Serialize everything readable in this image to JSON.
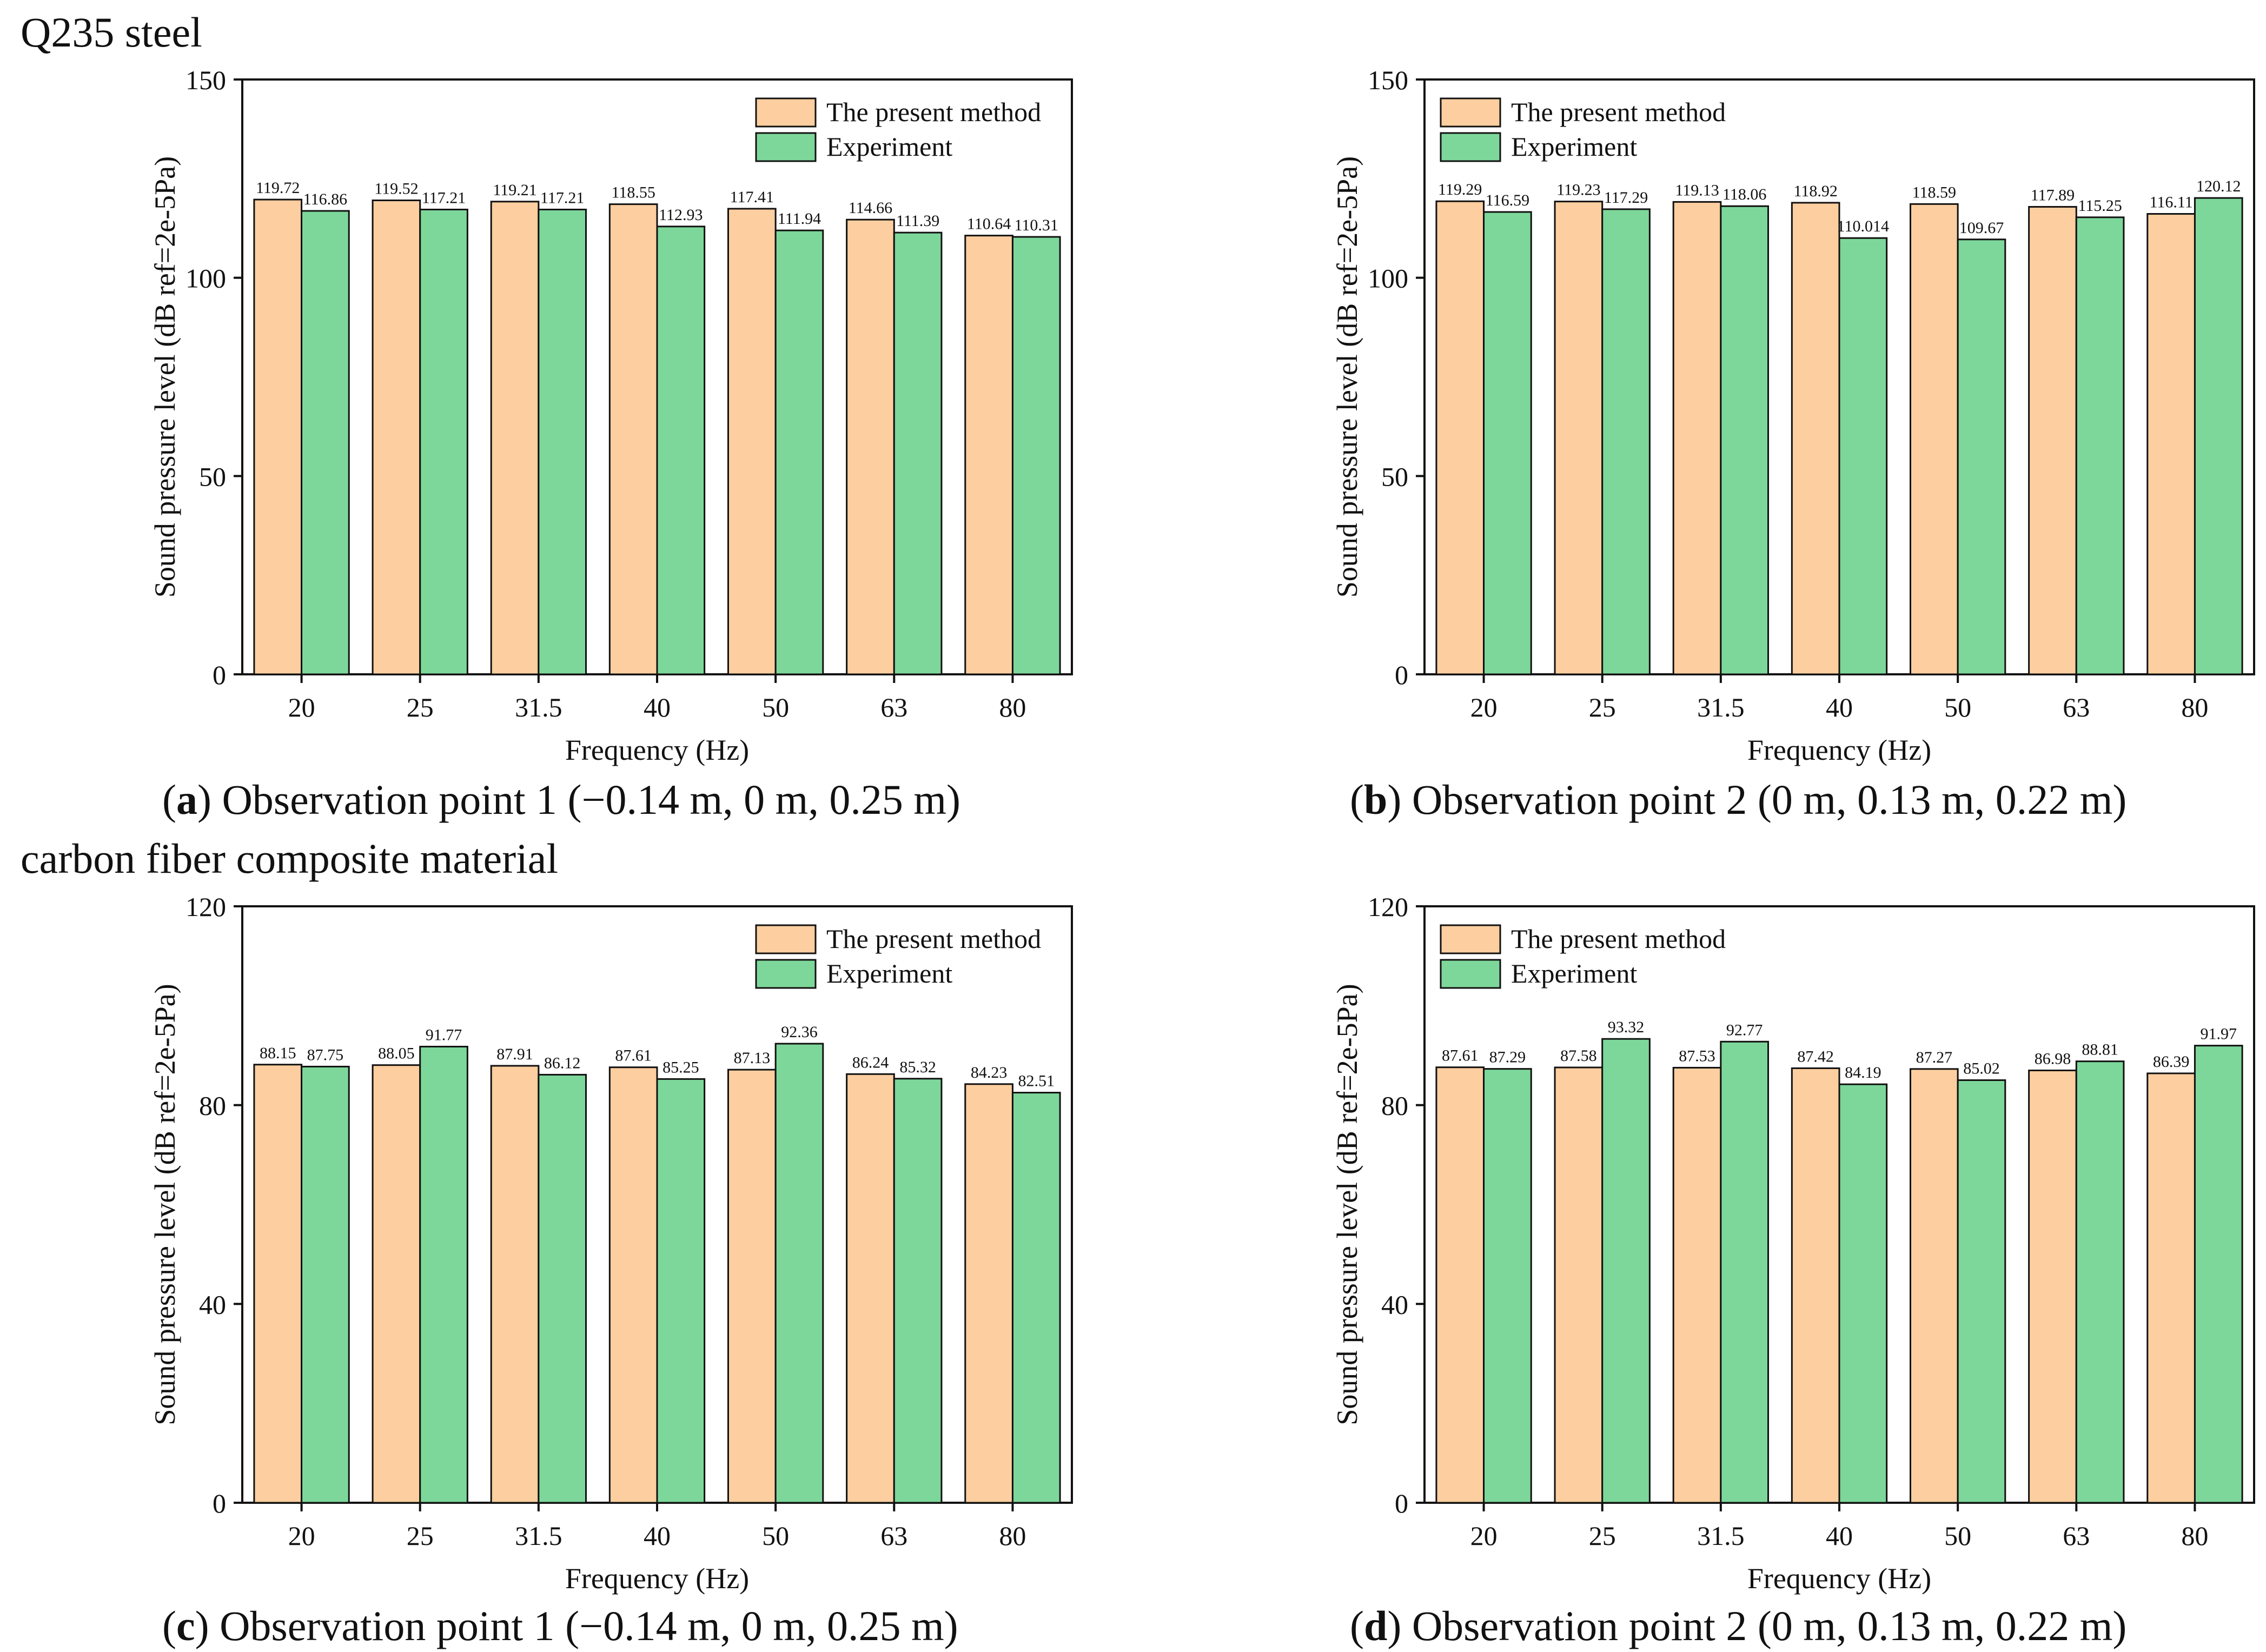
{
  "figure": {
    "section_top_title": "Q235 steel",
    "section_bottom_title": "carbon fiber composite material",
    "colors": {
      "present_method": "#FDCE9F",
      "experiment": "#7DD79A",
      "outline": "#111111"
    }
  },
  "chart_data": [
    {
      "type": "bar",
      "panel_letter": "a",
      "caption": "Observation point 1 (−0.14 m, 0 m, 0.25 m)",
      "xlabel": "Frequency (Hz)",
      "ylabel": "Sound pressure level (dB ref=2e-5Pa)",
      "ylim": [
        0,
        150
      ],
      "yticks": [
        0,
        50,
        100,
        150
      ],
      "legend_position": "top-right",
      "categories": [
        "20",
        "25",
        "31.5",
        "40",
        "50",
        "63",
        "80"
      ],
      "series": [
        {
          "name": "The present method",
          "values": [
            119.72,
            119.52,
            119.21,
            118.55,
            117.41,
            114.66,
            110.64
          ]
        },
        {
          "name": "Experiment",
          "values": [
            116.86,
            117.21,
            117.21,
            112.93,
            111.94,
            111.39,
            110.31
          ]
        }
      ]
    },
    {
      "type": "bar",
      "panel_letter": "b",
      "caption": "Observation point 2 (0 m, 0.13 m, 0.22 m)",
      "xlabel": "Frequency (Hz)",
      "ylabel": "Sound pressure level (dB ref=2e-5Pa)",
      "ylim": [
        0,
        150
      ],
      "yticks": [
        0,
        50,
        100,
        150
      ],
      "legend_position": "top-left",
      "categories": [
        "20",
        "25",
        "31.5",
        "40",
        "50",
        "63",
        "80"
      ],
      "series": [
        {
          "name": "The present method",
          "values": [
            119.29,
            119.23,
            119.13,
            118.92,
            118.59,
            117.89,
            116.11
          ]
        },
        {
          "name": "Experiment",
          "values": [
            116.59,
            117.29,
            118.06,
            110.014,
            109.67,
            115.25,
            120.12
          ]
        }
      ]
    },
    {
      "type": "bar",
      "panel_letter": "c",
      "caption": "Observation point 1 (−0.14 m, 0 m, 0.25 m)",
      "xlabel": "Frequency (Hz)",
      "ylabel": "Sound pressure level (dB ref=2e-5Pa)",
      "ylim": [
        0,
        120
      ],
      "yticks": [
        0,
        40,
        80,
        120
      ],
      "legend_position": "top-right",
      "categories": [
        "20",
        "25",
        "31.5",
        "40",
        "50",
        "63",
        "80"
      ],
      "series": [
        {
          "name": "The present method",
          "values": [
            88.15,
            88.05,
            87.91,
            87.61,
            87.13,
            86.24,
            84.23
          ]
        },
        {
          "name": "Experiment",
          "values": [
            87.75,
            91.77,
            86.12,
            85.25,
            92.36,
            85.32,
            82.51
          ]
        }
      ]
    },
    {
      "type": "bar",
      "panel_letter": "d",
      "caption": "Observation point 2 (0 m, 0.13 m, 0.22 m)",
      "xlabel": "Frequency (Hz)",
      "ylabel": "Sound pressure level (dB ref=2e-5Pa)",
      "ylim": [
        0,
        120
      ],
      "yticks": [
        0,
        40,
        80,
        120
      ],
      "legend_position": "top-left",
      "categories": [
        "20",
        "25",
        "31.5",
        "40",
        "50",
        "63",
        "80"
      ],
      "series": [
        {
          "name": "The present method",
          "values": [
            87.61,
            87.58,
            87.53,
            87.42,
            87.27,
            86.98,
            86.39
          ]
        },
        {
          "name": "Experiment",
          "values": [
            87.29,
            93.32,
            92.77,
            84.19,
            85.02,
            88.81,
            91.97
          ]
        }
      ]
    }
  ]
}
